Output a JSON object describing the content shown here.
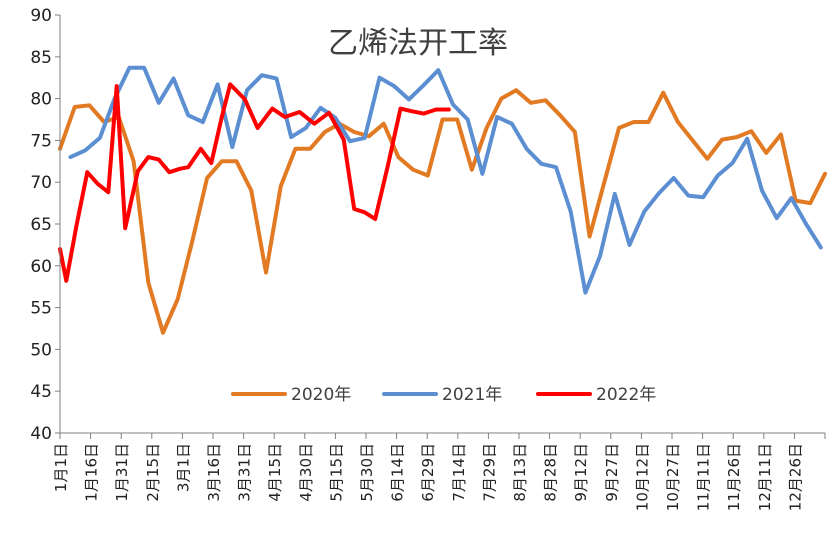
{
  "chart_data": {
    "type": "line",
    "title": "乙烯法开工率",
    "xlabel": "",
    "ylabel": "",
    "ylim": [
      40,
      90
    ],
    "yticks": [
      40,
      45,
      50,
      55,
      60,
      65,
      70,
      75,
      80,
      85,
      90
    ],
    "grid": false,
    "legend_position": "bottom-center",
    "xtick_labels": [
      "1月1日",
      "1月16日",
      "1月31日",
      "2月15日",
      "3月1日",
      "3月16日",
      "3月31日",
      "4月15日",
      "4月30日",
      "5月15日",
      "5月30日",
      "6月14日",
      "6月29日",
      "7月14日",
      "7月29日",
      "8月13日",
      "8月28日",
      "9月12日",
      "9月27日",
      "10月12日",
      "10月27日",
      "11月11日",
      "11月26日",
      "12月11日",
      "12月26日"
    ],
    "series": [
      {
        "name": "2020年",
        "color": "#E27A23",
        "x": [
          1,
          8,
          15,
          22,
          29,
          36,
          43,
          50,
          57,
          64,
          71,
          78,
          85,
          92,
          99,
          106,
          113,
          120,
          127,
          134,
          141,
          148,
          155,
          162,
          169,
          176,
          183,
          190,
          197,
          204,
          211,
          218,
          225,
          232,
          239,
          246,
          253,
          260,
          267,
          274,
          281,
          288,
          295,
          302,
          309,
          316,
          323,
          330,
          337,
          344,
          351,
          358,
          365
        ],
        "values": [
          74,
          79,
          79.2,
          77.2,
          77.8,
          72.5,
          58,
          52,
          56,
          63,
          70.5,
          72.5,
          72.5,
          69,
          59.2,
          69.5,
          74,
          74,
          76,
          77,
          76,
          75.5,
          77,
          73,
          71.5,
          70.8,
          77.5,
          77.5,
          71.5,
          76.5,
          80,
          81,
          79.5,
          79.8,
          78,
          76,
          63.5,
          70,
          76.5,
          77.2,
          77.2,
          80.7,
          77.2,
          75,
          72.8,
          75.1,
          75.4,
          76.1,
          73.5,
          75.7,
          67.8,
          67.5,
          71
        ]
      },
      {
        "name": "2021年",
        "color": "#5B8FD2",
        "x": [
          6,
          13,
          20,
          27,
          34,
          41,
          48,
          55,
          62,
          69,
          76,
          83,
          90,
          97,
          104,
          111,
          118,
          125,
          132,
          139,
          146,
          153,
          160,
          167,
          174,
          181,
          188,
          195,
          202,
          209,
          216,
          223,
          230,
          237,
          244,
          251,
          258,
          265,
          272,
          279,
          286,
          293,
          300,
          307,
          314,
          321,
          328,
          335,
          342,
          349,
          356,
          363
        ],
        "values": [
          73,
          73.8,
          75.3,
          80,
          83.7,
          83.7,
          79.5,
          82.4,
          78,
          77.2,
          81.7,
          74.2,
          81,
          82.8,
          82.4,
          75.4,
          76.5,
          78.9,
          77.7,
          74.9,
          75.3,
          82.5,
          81.5,
          79.9,
          81.6,
          83.4,
          79.3,
          77.5,
          71,
          77.8,
          77,
          74,
          72.2,
          71.8,
          66.5,
          56.8,
          61.2,
          68.6,
          62.5,
          66.5,
          68.7,
          70.5,
          68.4,
          68.2,
          70.8,
          72.3,
          75.2,
          69,
          65.7,
          68.1,
          65,
          62.2
        ]
      },
      {
        "name": "2022年",
        "color": "#FF0000",
        "x": [
          1,
          4,
          9,
          14,
          19,
          24,
          28,
          32,
          38,
          43,
          48,
          53,
          58,
          62,
          68,
          73,
          78,
          82,
          89,
          95,
          102,
          108,
          115,
          122,
          129,
          136,
          141,
          146,
          151,
          157,
          163,
          168,
          174,
          180,
          186
        ],
        "values": [
          62,
          58.2,
          65,
          71.2,
          69.8,
          68.8,
          81.5,
          64.5,
          71.3,
          73,
          72.7,
          71.2,
          71.6,
          71.8,
          74,
          72.3,
          77.8,
          81.7,
          79.9,
          76.5,
          78.8,
          77.8,
          78.4,
          77,
          78.3,
          75.1,
          66.8,
          66.4,
          65.6,
          72,
          78.8,
          78.5,
          78.2,
          78.7,
          78.7
        ]
      }
    ]
  }
}
